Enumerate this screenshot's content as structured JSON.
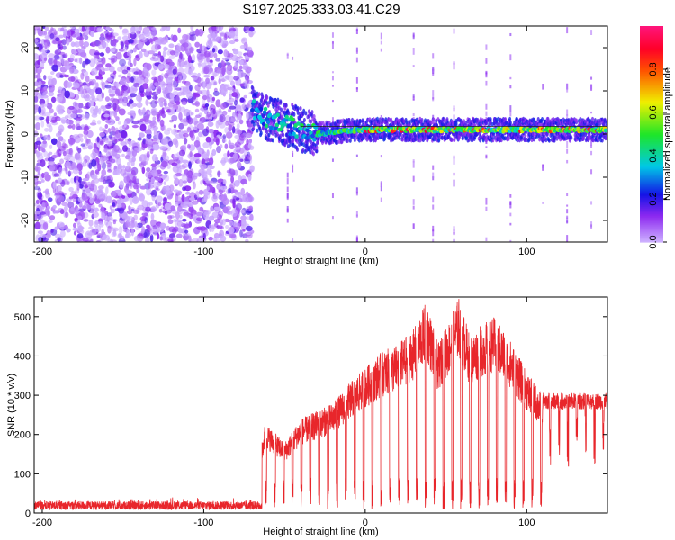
{
  "title": "S197.2025.333.03.41.C29",
  "chart_data": [
    {
      "type": "heatmap",
      "xlabel": "Height of straight line (km)",
      "ylabel": "Frequency (Hz)",
      "xlim": [
        -205,
        150
      ],
      "ylim": [
        -25,
        25
      ],
      "xticks": [
        -200,
        -100,
        0,
        100
      ],
      "yticks": [
        -20,
        -10,
        0,
        10,
        20
      ],
      "colorbar": {
        "label": "Normalized spectral amplitude",
        "range": [
          0,
          1
        ],
        "ticks": [
          0.0,
          0.2,
          0.4,
          0.6,
          0.8
        ],
        "tick_labels": [
          "0.0",
          "0.2",
          "0.4",
          "0.6",
          "0.8"
        ]
      },
      "features": {
        "noise_region_x": [
          -205,
          -70
        ],
        "noise_amplitude": 0.18,
        "signal_track": [
          {
            "x": -70,
            "freq": 6.0,
            "amp": 0.35
          },
          {
            "x": -60,
            "freq": 3.5,
            "amp": 0.4
          },
          {
            "x": -50,
            "freq": 2.5,
            "amp": 0.4
          },
          {
            "x": -40,
            "freq": 1.0,
            "amp": 0.45
          },
          {
            "x": -30,
            "freq": 0.0,
            "amp": 0.45
          },
          {
            "x": -20,
            "freq": 0.5,
            "amp": 0.5
          },
          {
            "x": 0,
            "freq": 1.0,
            "amp": 0.55
          },
          {
            "x": 20,
            "freq": 1.0,
            "amp": 0.6
          },
          {
            "x": 60,
            "freq": 1.0,
            "amp": 0.62
          },
          {
            "x": 100,
            "freq": 1.0,
            "amp": 0.62
          },
          {
            "x": 150,
            "freq": 1.0,
            "amp": 0.62
          }
        ],
        "peak_amplitude": 0.95
      }
    },
    {
      "type": "line",
      "color": "#e8262b",
      "xlabel": "Height of straight line (km)",
      "ylabel": "SNR (10 * v/v)",
      "xlim": [
        -205,
        150
      ],
      "ylim": [
        0,
        550
      ],
      "xticks": [
        -200,
        -100,
        0,
        100
      ],
      "yticks": [
        0,
        100,
        200,
        300,
        400,
        500
      ],
      "envelope": [
        {
          "x": -205,
          "y": 20
        },
        {
          "x": -70,
          "y": 25
        },
        {
          "x": -62,
          "y": 230
        },
        {
          "x": -50,
          "y": 180
        },
        {
          "x": -40,
          "y": 240
        },
        {
          "x": -30,
          "y": 260
        },
        {
          "x": -20,
          "y": 280
        },
        {
          "x": -10,
          "y": 330
        },
        {
          "x": 0,
          "y": 370
        },
        {
          "x": 10,
          "y": 410
        },
        {
          "x": 20,
          "y": 430
        },
        {
          "x": 30,
          "y": 470
        },
        {
          "x": 38,
          "y": 540
        },
        {
          "x": 45,
          "y": 430
        },
        {
          "x": 52,
          "y": 490
        },
        {
          "x": 58,
          "y": 550
        },
        {
          "x": 65,
          "y": 450
        },
        {
          "x": 72,
          "y": 480
        },
        {
          "x": 80,
          "y": 500
        },
        {
          "x": 90,
          "y": 440
        },
        {
          "x": 100,
          "y": 360
        },
        {
          "x": 110,
          "y": 300
        },
        {
          "x": 130,
          "y": 300
        },
        {
          "x": 150,
          "y": 300
        }
      ],
      "dropout_spacing_km": 5.5,
      "dropout_start_km": -62
    }
  ]
}
